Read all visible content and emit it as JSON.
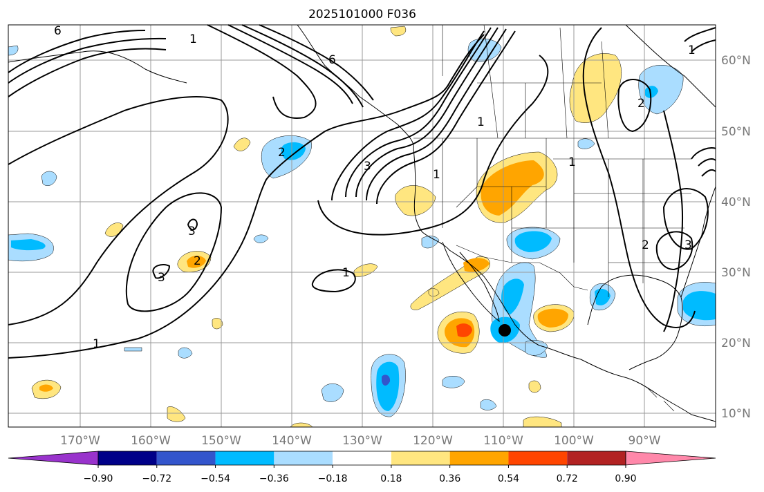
{
  "title": "2025101000 F036",
  "lat_labels": [
    "60°N",
    "50°N",
    "40°N",
    "30°N",
    "20°N",
    "10°N"
  ],
  "lon_labels": [
    "170°W",
    "160°W",
    "150°W",
    "140°W",
    "130°W",
    "120°W",
    "110°W",
    "100°W",
    "90°W"
  ],
  "colorbar": {
    "ticks": [
      "−0.90",
      "−0.72",
      "−0.54",
      "−0.36",
      "−0.18",
      "0.18",
      "0.36",
      "0.54",
      "0.72",
      "0.90"
    ],
    "colors": [
      "#9933cc",
      "#000088",
      "#3355cc",
      "#00bbff",
      "#aaddff",
      "#ffffff",
      "#ffe680",
      "#ffa500",
      "#ff4500",
      "#b22222",
      "#ff88aa"
    ]
  },
  "contour_labels": [
    "1",
    "1",
    "6",
    "3",
    "1",
    "2",
    "3",
    "2",
    "3",
    "1",
    "1",
    "2",
    "3",
    "2",
    "1",
    "6",
    "1"
  ],
  "colors": {
    "light_blue": "#aaddff",
    "blue": "#00bbff",
    "dark_blue": "#3355cc",
    "yellow": "#ffe680",
    "orange": "#ffa500",
    "red": "#ff4500",
    "grid": "#999999"
  },
  "marker": {
    "name": "storm-center",
    "lat": 21.5,
    "lon": -110.2
  }
}
